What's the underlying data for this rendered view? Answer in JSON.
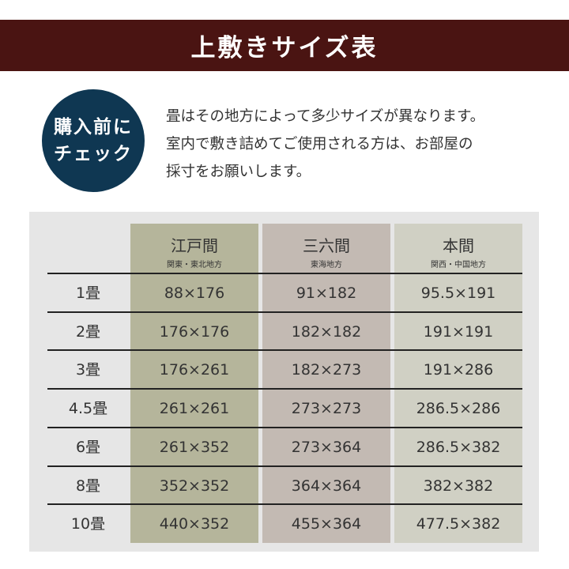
{
  "title": "上敷きサイズ表",
  "badge": {
    "line1": "購入前に",
    "line2": "チェック"
  },
  "intro": [
    "畳はその地方によって多少サイズが異なります。",
    "室内で敷き詰めてご使用される方は、お部屋の",
    "採寸をお願いします。"
  ],
  "columns": [
    {
      "name": "江戸間",
      "region": "関東・東北地方",
      "color": "#b5b59b"
    },
    {
      "name": "三六間",
      "region": "東海地方",
      "color": "#c3bab3"
    },
    {
      "name": "本間",
      "region": "関西・中国地方",
      "color": "#d0d0c4"
    }
  ],
  "rows": [
    {
      "label": "1畳",
      "values": [
        "88×176",
        "91×182",
        "95.5×191"
      ]
    },
    {
      "label": "2畳",
      "values": [
        "176×176",
        "182×182",
        "191×191"
      ]
    },
    {
      "label": "3畳",
      "values": [
        "176×261",
        "182×273",
        "191×286"
      ]
    },
    {
      "label": "4.5畳",
      "values": [
        "261×261",
        "273×273",
        "286.5×286"
      ]
    },
    {
      "label": "6畳",
      "values": [
        "261×352",
        "273×364",
        "286.5×382"
      ]
    },
    {
      "label": "8畳",
      "values": [
        "352×352",
        "364×364",
        "382×382"
      ]
    },
    {
      "label": "10畳",
      "values": [
        "440×352",
        "455×364",
        "477.5×382"
      ]
    }
  ]
}
